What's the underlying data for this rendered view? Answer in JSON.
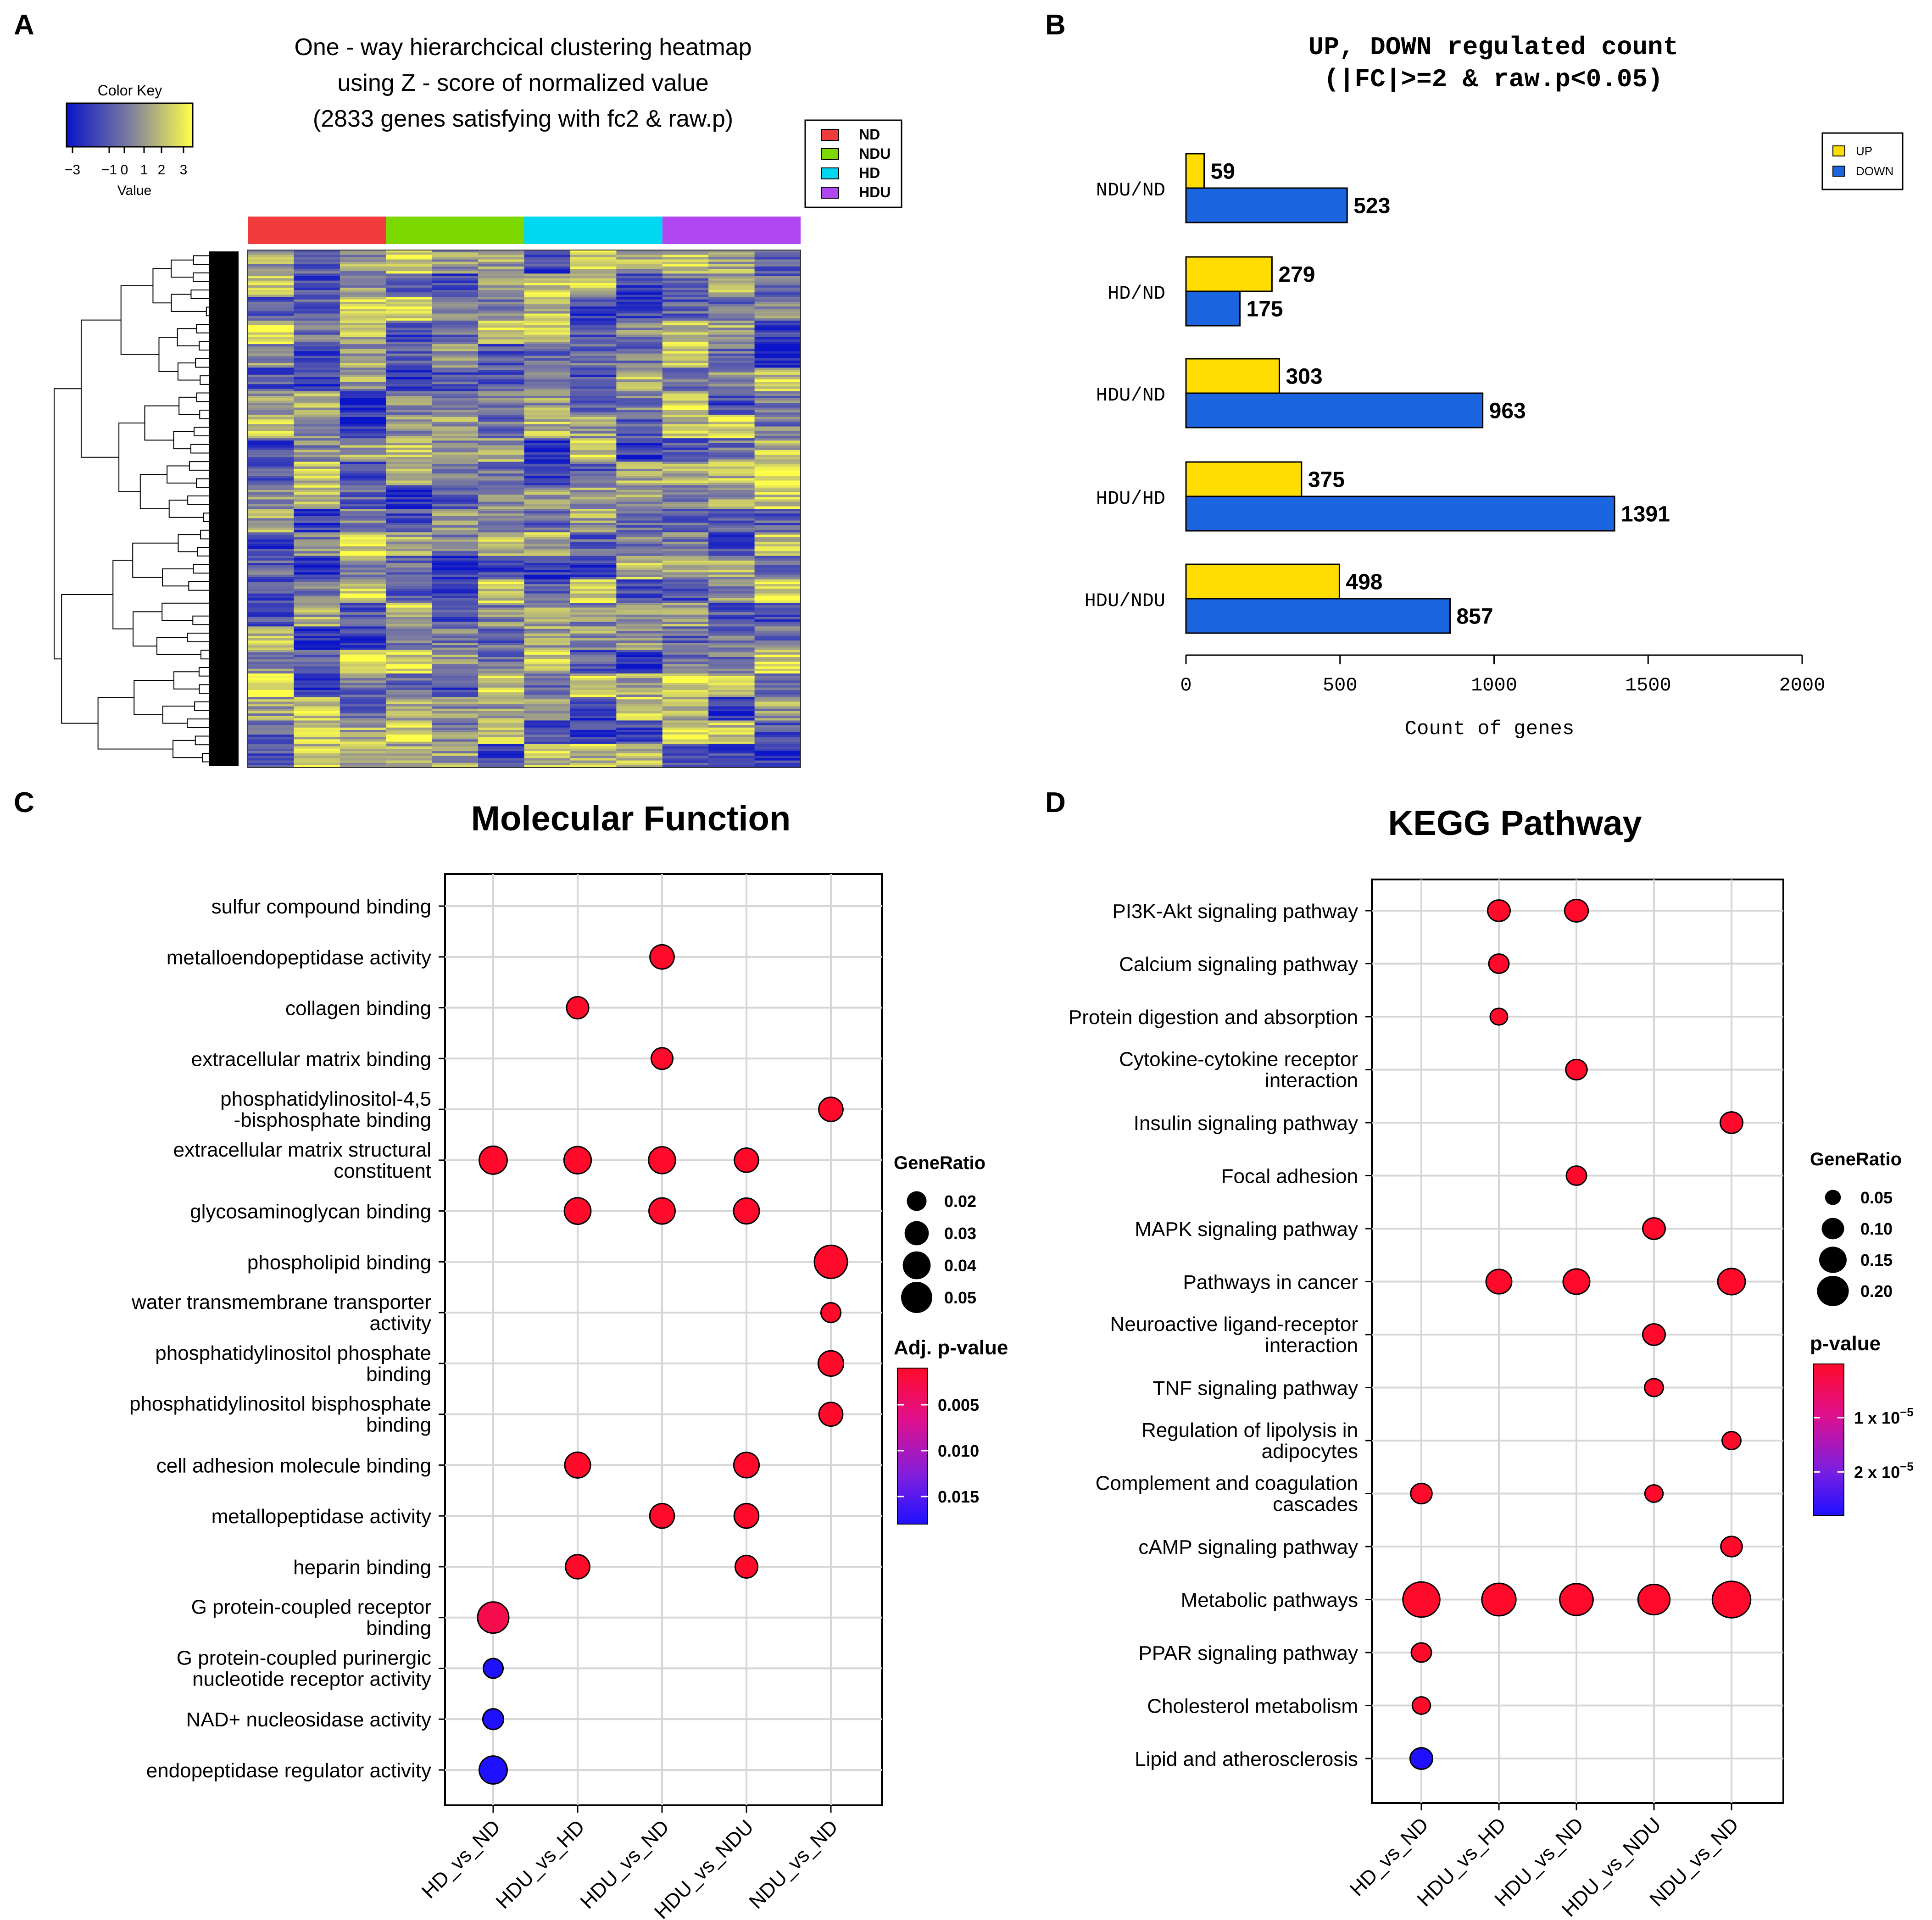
{
  "panels": {
    "A": {
      "letter": "A",
      "title": [
        "One - way hierarchcical clustering heatmap",
        "using Z - score of normalized value",
        "(2833 genes satisfying with fc2 & raw.p)"
      ],
      "color_key": {
        "title": "Color Key",
        "ticks": [
          "−3",
          "−1",
          "0",
          "1",
          "2",
          "3"
        ],
        "axis_label": "Value"
      },
      "groups": [
        "ND",
        "NDU",
        "HD",
        "HDU"
      ],
      "group_colors": [
        "#f03c3c",
        "#7dd800",
        "#00d7f0",
        "#b147f2"
      ],
      "gradient": [
        "#0a14c8",
        "#7c7ca0",
        "#ffff4a"
      ]
    },
    "B": {
      "letter": "B"
    },
    "C": {
      "letter": "C"
    },
    "D": {
      "letter": "D"
    }
  },
  "chart_data": [
    {
      "id": "B",
      "type": "bar",
      "orientation": "horizontal",
      "title": [
        "UP, DOWN regulated count",
        "(|FC|>=2 & raw.p<0.05)"
      ],
      "categories": [
        "NDU/ND",
        "HD/ND",
        "HDU/ND",
        "HDU/HD",
        "HDU/NDU"
      ],
      "series": [
        {
          "name": "UP",
          "color": "#ffdd00",
          "values": [
            59,
            279,
            303,
            375,
            498
          ]
        },
        {
          "name": "DOWN",
          "color": "#1b65e0",
          "values": [
            523,
            175,
            963,
            1391,
            857
          ]
        }
      ],
      "xlabel": "Count of genes",
      "xlim": [
        0,
        2000
      ],
      "xticks": [
        "0",
        "500",
        "1000",
        "1500",
        "2000"
      ],
      "legend": "top-right"
    },
    {
      "id": "C",
      "type": "scatter",
      "subtype": "dotplot",
      "title": "Molecular Function",
      "x_categories": [
        "HD_vs_ND",
        "HDU_vs_HD",
        "HDU_vs_ND",
        "HDU_vs_NDU",
        "NDU_vs_ND"
      ],
      "y_categories": [
        [
          "sulfur compound binding"
        ],
        [
          "metalloendopeptidase activity"
        ],
        [
          "collagen binding"
        ],
        [
          "extracellular matrix binding"
        ],
        [
          "phosphatidylinositol-4,5",
          "-bisphosphate binding"
        ],
        [
          "extracellular matrix structural",
          "constituent"
        ],
        [
          "glycosaminoglycan binding"
        ],
        [
          "phospholipid binding"
        ],
        [
          "water transmembrane transporter",
          "activity"
        ],
        [
          "phosphatidylinositol phosphate",
          "binding"
        ],
        [
          "phosphatidylinositol bisphosphate",
          "binding"
        ],
        [
          "cell adhesion molecule binding"
        ],
        [
          "metallopeptidase activity"
        ],
        [
          "heparin binding"
        ],
        [
          "G protein-coupled receptor",
          "binding"
        ],
        [
          "G protein-coupled purinergic",
          "nucleotide receptor activity"
        ],
        [
          "NAD+ nucleosidase activity"
        ],
        [
          "endopeptidase regulator activity"
        ]
      ],
      "points": [
        {
          "x": 2,
          "y": 1,
          "size": 0.03,
          "color": 0.001
        },
        {
          "x": 1,
          "y": 2,
          "size": 0.025,
          "color": 0.001
        },
        {
          "x": 2,
          "y": 3,
          "size": 0.024,
          "color": 0.001
        },
        {
          "x": 4,
          "y": 4,
          "size": 0.03,
          "color": 0.001
        },
        {
          "x": 0,
          "y": 5,
          "size": 0.04,
          "color": 0.001
        },
        {
          "x": 1,
          "y": 5,
          "size": 0.038,
          "color": 0.001
        },
        {
          "x": 2,
          "y": 5,
          "size": 0.037,
          "color": 0.001
        },
        {
          "x": 3,
          "y": 5,
          "size": 0.03,
          "color": 0.001
        },
        {
          "x": 1,
          "y": 6,
          "size": 0.036,
          "color": 0.001
        },
        {
          "x": 2,
          "y": 6,
          "size": 0.035,
          "color": 0.001
        },
        {
          "x": 3,
          "y": 6,
          "size": 0.034,
          "color": 0.001
        },
        {
          "x": 4,
          "y": 7,
          "size": 0.056,
          "color": 0.001
        },
        {
          "x": 4,
          "y": 8,
          "size": 0.02,
          "color": 0.001
        },
        {
          "x": 4,
          "y": 9,
          "size": 0.033,
          "color": 0.001
        },
        {
          "x": 4,
          "y": 10,
          "size": 0.029,
          "color": 0.001
        },
        {
          "x": 1,
          "y": 11,
          "size": 0.034,
          "color": 0.001
        },
        {
          "x": 3,
          "y": 11,
          "size": 0.033,
          "color": 0.001
        },
        {
          "x": 2,
          "y": 12,
          "size": 0.031,
          "color": 0.001
        },
        {
          "x": 3,
          "y": 12,
          "size": 0.031,
          "color": 0.001
        },
        {
          "x": 1,
          "y": 13,
          "size": 0.03,
          "color": 0.001
        },
        {
          "x": 3,
          "y": 13,
          "size": 0.026,
          "color": 0.001
        },
        {
          "x": 0,
          "y": 14,
          "size": 0.05,
          "color": 0.003
        },
        {
          "x": 0,
          "y": 15,
          "size": 0.02,
          "color": 0.018
        },
        {
          "x": 0,
          "y": 16,
          "size": 0.022,
          "color": 0.018
        },
        {
          "x": 0,
          "y": 17,
          "size": 0.04,
          "color": 0.018
        }
      ],
      "size_legend": {
        "title": "GeneRatio",
        "values": [
          0.02,
          0.03,
          0.04,
          0.05
        ],
        "labels": [
          "0.02",
          "0.03",
          "0.04",
          "0.05"
        ]
      },
      "color_legend": {
        "title": "Adj. p-value",
        "range": [
          0.001,
          0.018
        ],
        "labels": [
          "0.005",
          "0.010",
          "0.015"
        ],
        "values": [
          0.005,
          0.01,
          0.015
        ],
        "colors": [
          "#ff0a2a",
          "#e0108c",
          "#7d1fe0",
          "#1f10ff"
        ]
      }
    },
    {
      "id": "D",
      "type": "scatter",
      "subtype": "dotplot",
      "title": "KEGG Pathway",
      "x_categories": [
        "HD_vs_ND",
        "HDU_vs_HD",
        "HDU_vs_ND",
        "HDU_vs_NDU",
        "NDU_vs_ND"
      ],
      "y_categories": [
        [
          "PI3K-Akt signaling pathway"
        ],
        [
          "Calcium signaling pathway"
        ],
        [
          "Protein digestion and absorption"
        ],
        [
          "Cytokine-cytokine receptor",
          "interaction"
        ],
        [
          "Insulin signaling pathway"
        ],
        [
          "Focal adhesion"
        ],
        [
          "MAPK signaling pathway"
        ],
        [
          "Pathways in cancer"
        ],
        [
          "Neuroactive ligand-receptor",
          "interaction"
        ],
        [
          "TNF signaling pathway"
        ],
        [
          "Regulation of lipolysis in",
          "adipocytes"
        ],
        [
          "Complement and coagulation",
          "cascades"
        ],
        [
          "cAMP signaling pathway"
        ],
        [
          "Metabolic pathways"
        ],
        [
          "PPAR signaling pathway"
        ],
        [
          "Cholesterol metabolism"
        ],
        [
          "Lipid and atherosclerosis"
        ]
      ],
      "points": [
        {
          "x": 1,
          "y": 0,
          "size": 0.1,
          "color": 1e-07
        },
        {
          "x": 2,
          "y": 0,
          "size": 0.11,
          "color": 1e-07
        },
        {
          "x": 1,
          "y": 1,
          "size": 0.08,
          "color": 1e-07
        },
        {
          "x": 1,
          "y": 2,
          "size": 0.06,
          "color": 1e-07
        },
        {
          "x": 2,
          "y": 3,
          "size": 0.09,
          "color": 1e-07
        },
        {
          "x": 4,
          "y": 4,
          "size": 0.1,
          "color": 1e-07
        },
        {
          "x": 2,
          "y": 5,
          "size": 0.08,
          "color": 1e-07
        },
        {
          "x": 3,
          "y": 6,
          "size": 0.1,
          "color": 1e-07
        },
        {
          "x": 1,
          "y": 7,
          "size": 0.13,
          "color": 1e-07
        },
        {
          "x": 2,
          "y": 7,
          "size": 0.14,
          "color": 1e-07
        },
        {
          "x": 4,
          "y": 7,
          "size": 0.15,
          "color": 1e-07
        },
        {
          "x": 3,
          "y": 8,
          "size": 0.1,
          "color": 1e-07
        },
        {
          "x": 3,
          "y": 9,
          "size": 0.07,
          "color": 1e-07
        },
        {
          "x": 4,
          "y": 10,
          "size": 0.07,
          "color": 1e-07
        },
        {
          "x": 0,
          "y": 11,
          "size": 0.09,
          "color": 1e-07
        },
        {
          "x": 3,
          "y": 11,
          "size": 0.065,
          "color": 1e-07
        },
        {
          "x": 4,
          "y": 12,
          "size": 0.09,
          "color": 1e-07
        },
        {
          "x": 0,
          "y": 13,
          "size": 0.27,
          "color": 1e-07
        },
        {
          "x": 1,
          "y": 13,
          "size": 0.23,
          "color": 1e-07
        },
        {
          "x": 2,
          "y": 13,
          "size": 0.22,
          "color": 1e-07
        },
        {
          "x": 3,
          "y": 13,
          "size": 0.2,
          "color": 1e-07
        },
        {
          "x": 4,
          "y": 13,
          "size": 0.29,
          "color": 1e-07
        },
        {
          "x": 0,
          "y": 14,
          "size": 0.08,
          "color": 1e-07
        },
        {
          "x": 0,
          "y": 15,
          "size": 0.065,
          "color": 1e-07
        },
        {
          "x": 0,
          "y": 16,
          "size": 0.1,
          "color": 2.8e-05
        }
      ],
      "size_legend": {
        "title": "GeneRatio",
        "values": [
          0.05,
          0.1,
          0.15,
          0.2
        ],
        "labels": [
          "0.05",
          "0.10",
          "0.15",
          "0.20"
        ]
      },
      "color_legend": {
        "title": "p-value",
        "range": [
          1e-07,
          2.8e-05
        ],
        "labels": [
          "1 x 10",
          "2 x 10"
        ],
        "label_exponents": [
          "−5",
          "−5"
        ],
        "values": [
          1e-05,
          2e-05
        ],
        "colors": [
          "#ff0a2a",
          "#e0108c",
          "#7d1fe0",
          "#1f10ff"
        ]
      }
    }
  ]
}
